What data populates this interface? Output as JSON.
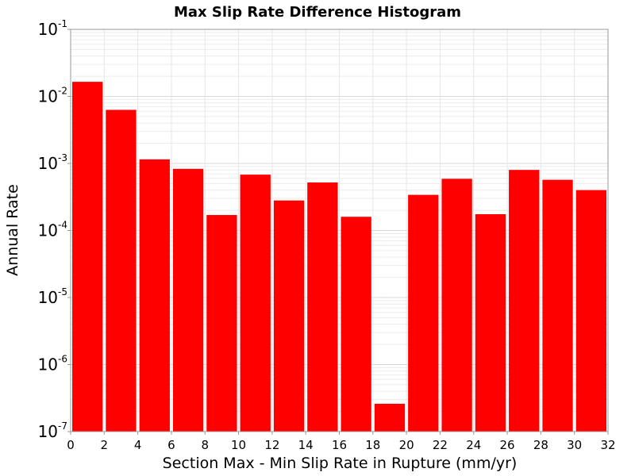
{
  "chart_data": {
    "type": "bar",
    "title": "Max Slip Rate Difference Histogram",
    "xlabel": "Section Max - Min Slip Rate in Rupture (mm/yr)",
    "ylabel": "Annual Rate",
    "x_ticks": [
      "0",
      "2",
      "4",
      "6",
      "8",
      "10",
      "12",
      "14",
      "16",
      "18",
      "20",
      "22",
      "24",
      "26",
      "28",
      "30",
      "32"
    ],
    "y_ticks": [
      {
        "base": "10",
        "exp": "-1"
      },
      {
        "base": "10",
        "exp": "-2"
      },
      {
        "base": "10",
        "exp": "-3"
      },
      {
        "base": "10",
        "exp": "-4"
      },
      {
        "base": "10",
        "exp": "-5"
      },
      {
        "base": "10",
        "exp": "-6"
      },
      {
        "base": "10",
        "exp": "-7"
      }
    ],
    "xlim": [
      0,
      32
    ],
    "ylim": [
      1e-07,
      0.1
    ],
    "yscale": "log",
    "bin_width": 2,
    "bin_centers": [
      1,
      3,
      5,
      7,
      9,
      11,
      13,
      15,
      17,
      19,
      21,
      23,
      25,
      27,
      29,
      31
    ],
    "values": [
      0.0165,
      0.0063,
      0.00115,
      0.00083,
      0.00017,
      0.00068,
      0.00028,
      0.00052,
      0.00016,
      2.6e-07,
      0.00034,
      0.00059,
      0.000175,
      0.0008,
      0.00057,
      0.0004
    ],
    "bar_color": "#ff0000",
    "grid": true
  }
}
